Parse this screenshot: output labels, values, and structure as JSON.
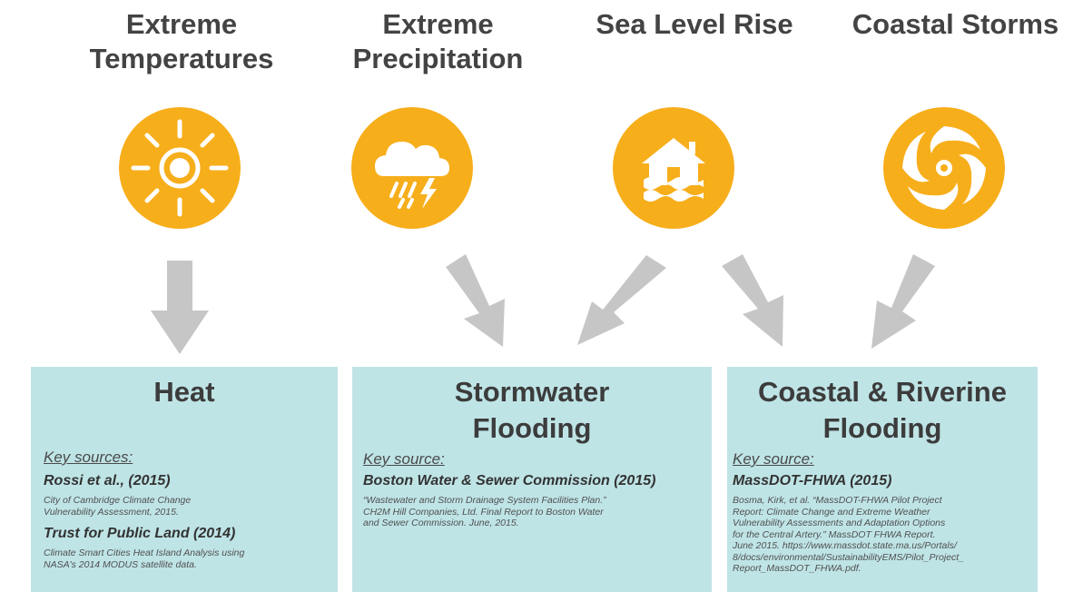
{
  "hazards": [
    {
      "title": "Extreme\nTemperatures",
      "icon": "sun-icon"
    },
    {
      "title": "Extreme\nPrecipitation",
      "icon": "storm-cloud-icon"
    },
    {
      "title": "Sea Level Rise",
      "icon": "flooded-house-icon"
    },
    {
      "title": "Coastal Storms",
      "icon": "hurricane-icon"
    }
  ],
  "impacts": [
    {
      "title": "Heat",
      "source_label": "Key sources:",
      "sources": [
        {
          "name": "Rossi et al., (2015)",
          "desc": "City of Cambridge Climate Change\nVulnerability Assessment, 2015."
        },
        {
          "name": "Trust for Public Land (2014)",
          "desc": "Climate Smart Cities Heat Island Analysis using\nNASA's 2014 MODUS satellite data."
        }
      ]
    },
    {
      "title": "Stormwater\nFlooding",
      "source_label": "Key source:",
      "sources": [
        {
          "name": "Boston Water & Sewer Commission (2015)",
          "desc": "“Wastewater and Storm Drainage System Facilities Plan.”\nCH2M Hill Companies, Ltd. Final Report to Boston Water\nand Sewer Commission. June, 2015."
        }
      ]
    },
    {
      "title": "Coastal & Riverine\nFlooding",
      "source_label": "Key source:",
      "sources": [
        {
          "name": "MassDOT-FHWA (2015)",
          "desc": "Bosma, Kirk, et al. “MassDOT-FHWA Pilot Project\nReport: Climate Change and Extreme Weather\nVulnerability Assessments and Adaptation Options\n for the Central Artery.” MassDOT FHWA Report.\nJune 2015. https://www.massdot.state.ma.us/Portals/\n8/docs/environmental/SustainabilityEMS/Pilot_Project_\nReport_MassDOT_FHWA.pdf."
        }
      ]
    }
  ],
  "colors": {
    "accent": "#f7ae1b",
    "box": "#bfe4e6",
    "arrow": "#c6c6c6",
    "text": "#434343"
  }
}
